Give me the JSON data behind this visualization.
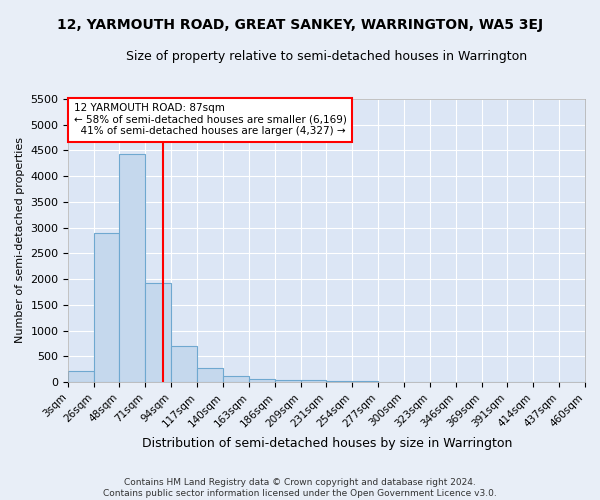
{
  "title": "12, YARMOUTH ROAD, GREAT SANKEY, WARRINGTON, WA5 3EJ",
  "subtitle": "Size of property relative to semi-detached houses in Warrington",
  "xlabel": "Distribution of semi-detached houses by size in Warrington",
  "ylabel": "Number of semi-detached properties",
  "property_size": 87,
  "property_label": "12 YARMOUTH ROAD: 87sqm",
  "pct_smaller": 58,
  "count_smaller": "6,169",
  "pct_larger": 41,
  "count_larger": "4,327",
  "bin_edges": [
    3,
    26,
    48,
    71,
    94,
    117,
    140,
    163,
    186,
    209,
    231,
    254,
    277,
    300,
    323,
    346,
    369,
    391,
    414,
    437,
    460
  ],
  "bar_values": [
    220,
    2900,
    4430,
    1920,
    710,
    280,
    115,
    65,
    50,
    40,
    30,
    20,
    10,
    5,
    4,
    3,
    2,
    1,
    1,
    0
  ],
  "bar_color": "#c5d8ed",
  "bar_edge_color": "#6fa8d0",
  "vline_x": 87,
  "vline_color": "red",
  "ylim": [
    0,
    5500
  ],
  "yticks": [
    0,
    500,
    1000,
    1500,
    2000,
    2500,
    3000,
    3500,
    4000,
    4500,
    5000,
    5500
  ],
  "fig_bg_color": "#e8eef7",
  "axes_bg_color": "#dce6f5",
  "grid_color": "#ffffff",
  "footer": "Contains HM Land Registry data © Crown copyright and database right 2024.\nContains public sector information licensed under the Open Government Licence v3.0."
}
